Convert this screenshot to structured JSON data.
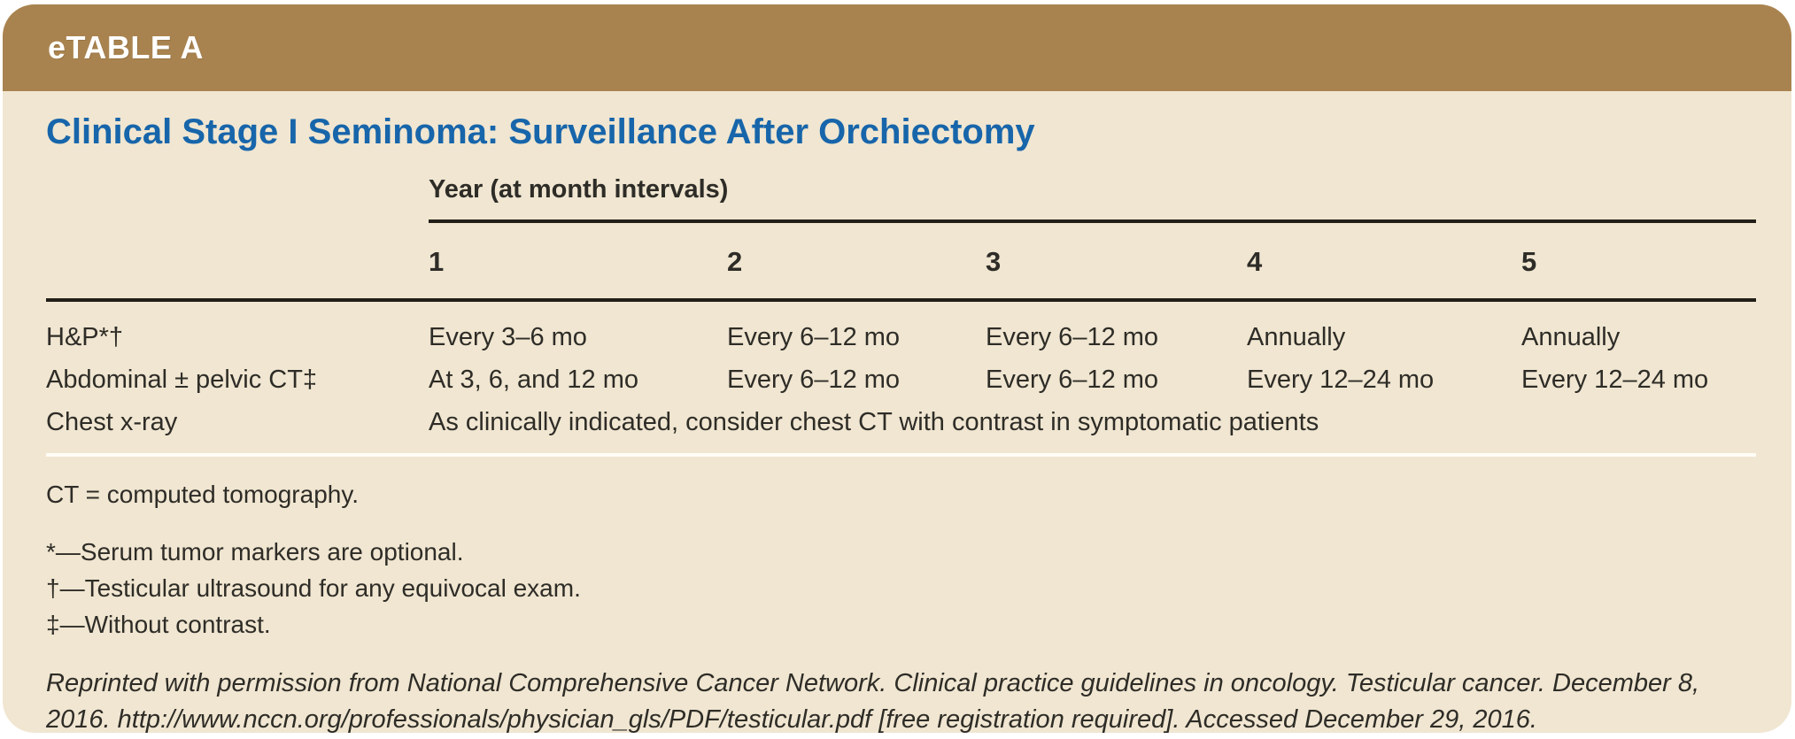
{
  "header": {
    "table_label": "eTABLE A"
  },
  "title": "Clinical Stage I Seminoma: Surveillance After Orchiectomy",
  "table": {
    "group_header": "Year (at month intervals)",
    "columns": [
      "1",
      "2",
      "3",
      "4",
      "5"
    ],
    "rows": [
      {
        "label": "H&P*†",
        "cells": [
          "Every 3–6 mo",
          "Every 6–12 mo",
          "Every 6–12 mo",
          "Annually",
          "Annually"
        ]
      },
      {
        "label": "Abdominal ± pelvic CT‡",
        "cells": [
          "At 3, 6, and 12 mo",
          "Every 6–12 mo",
          "Every 6–12 mo",
          "Every 12–24 mo",
          "Every 12–24 mo"
        ]
      },
      {
        "label": "Chest x-ray",
        "span_text": "As clinically indicated, consider chest CT with contrast in symptomatic patients"
      }
    ]
  },
  "footnotes": {
    "abbreviation": "CT = computed tomography.",
    "symbols": [
      "*—Serum tumor markers are optional.",
      "†—Testicular ultrasound for any equivocal exam.",
      "‡—Without contrast."
    ]
  },
  "citation": "Reprinted with permission from National Comprehensive Cancer Network. Clinical practice guidelines in oncology. Testicular cancer. December 8, 2016. http://www.nccn.org/professionals/physician_gls/PDF/testicular.pdf [free registration required]. Accessed December 29, 2016.",
  "colors": {
    "header_brown": "#a9834f",
    "panel_beige": "#f0e6d1",
    "title_blue": "#1765aa",
    "text_dark": "#2e2c27",
    "rule_dark": "#221e18",
    "rule_white": "#fffdf6"
  }
}
